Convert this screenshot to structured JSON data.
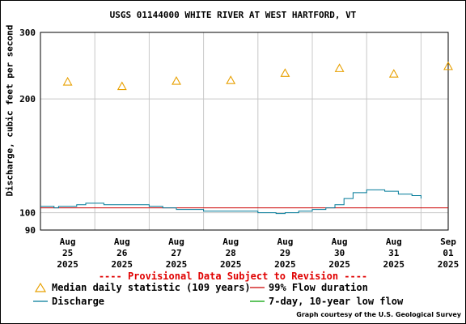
{
  "chart_data": {
    "type": "line",
    "title": "USGS 01144000 WHITE RIVER AT WEST HARTFORD, VT",
    "ylabel": "Discharge, cubic feet per second",
    "yscale": "log",
    "ylim": [
      90,
      300
    ],
    "y_ticks": [
      90,
      100,
      200,
      300
    ],
    "x_range": [
      "2025-08-25 00:00",
      "2025-09-01 12:00"
    ],
    "x_ticks": [
      {
        "month": "Aug",
        "day": "25",
        "year": "2025",
        "date": "2025-08-25"
      },
      {
        "month": "Aug",
        "day": "26",
        "year": "2025",
        "date": "2025-08-26"
      },
      {
        "month": "Aug",
        "day": "27",
        "year": "2025",
        "date": "2025-08-27"
      },
      {
        "month": "Aug",
        "day": "28",
        "year": "2025",
        "date": "2025-08-28"
      },
      {
        "month": "Aug",
        "day": "29",
        "year": "2025",
        "date": "2025-08-29"
      },
      {
        "month": "Aug",
        "day": "30",
        "year": "2025",
        "date": "2025-08-30"
      },
      {
        "month": "Aug",
        "day": "31",
        "year": "2025",
        "date": "2025-08-31"
      },
      {
        "month": "Sep",
        "day": "01",
        "year": "2025",
        "date": "2025-09-01"
      }
    ],
    "grid": true,
    "series": [
      {
        "name": "Median daily statistic (109 years)",
        "type": "scatter",
        "color": "#e8a000",
        "marker": "triangle",
        "points": [
          {
            "x": "2025-08-25 12:00",
            "y": 222
          },
          {
            "x": "2025-08-26 12:00",
            "y": 216
          },
          {
            "x": "2025-08-27 12:00",
            "y": 223
          },
          {
            "x": "2025-08-28 12:00",
            "y": 224
          },
          {
            "x": "2025-08-29 12:00",
            "y": 234
          },
          {
            "x": "2025-08-30 12:00",
            "y": 241
          },
          {
            "x": "2025-08-31 12:00",
            "y": 233
          },
          {
            "x": "2025-09-01 12:00",
            "y": 244
          }
        ]
      },
      {
        "name": "99% Flow duration",
        "type": "line",
        "color": "#cc0000",
        "points": [
          {
            "x": "2025-08-25 00:00",
            "y": 103
          },
          {
            "x": "2025-09-01 12:00",
            "y": 103
          }
        ]
      },
      {
        "name": "Discharge",
        "type": "line",
        "color": "#007a99",
        "points": [
          {
            "x": "2025-08-25 00:00",
            "y": 104
          },
          {
            "x": "2025-08-25 04:00",
            "y": 104
          },
          {
            "x": "2025-08-25 06:00",
            "y": 103
          },
          {
            "x": "2025-08-25 08:00",
            "y": 104
          },
          {
            "x": "2025-08-25 12:00",
            "y": 104
          },
          {
            "x": "2025-08-25 16:00",
            "y": 105
          },
          {
            "x": "2025-08-25 20:00",
            "y": 106
          },
          {
            "x": "2025-08-26 00:00",
            "y": 106
          },
          {
            "x": "2025-08-26 04:00",
            "y": 105
          },
          {
            "x": "2025-08-26 12:00",
            "y": 105
          },
          {
            "x": "2025-08-26 18:00",
            "y": 105
          },
          {
            "x": "2025-08-27 00:00",
            "y": 104
          },
          {
            "x": "2025-08-27 06:00",
            "y": 103
          },
          {
            "x": "2025-08-27 12:00",
            "y": 102
          },
          {
            "x": "2025-08-27 18:00",
            "y": 102
          },
          {
            "x": "2025-08-28 00:00",
            "y": 101
          },
          {
            "x": "2025-08-28 12:00",
            "y": 101
          },
          {
            "x": "2025-08-29 00:00",
            "y": 100
          },
          {
            "x": "2025-08-29 06:00",
            "y": 100
          },
          {
            "x": "2025-08-29 08:00",
            "y": 99.5
          },
          {
            "x": "2025-08-29 12:00",
            "y": 100
          },
          {
            "x": "2025-08-29 18:00",
            "y": 101
          },
          {
            "x": "2025-08-30 00:00",
            "y": 102
          },
          {
            "x": "2025-08-30 06:00",
            "y": 103
          },
          {
            "x": "2025-08-30 10:00",
            "y": 105
          },
          {
            "x": "2025-08-30 14:00",
            "y": 109
          },
          {
            "x": "2025-08-30 18:00",
            "y": 113
          },
          {
            "x": "2025-08-31 00:00",
            "y": 115
          },
          {
            "x": "2025-08-31 04:00",
            "y": 115
          },
          {
            "x": "2025-08-31 08:00",
            "y": 114
          },
          {
            "x": "2025-08-31 14:00",
            "y": 112
          },
          {
            "x": "2025-08-31 20:00",
            "y": 111
          },
          {
            "x": "2025-09-01 00:00",
            "y": 109
          }
        ]
      },
      {
        "name": "7-day, 10-year low flow",
        "type": "line",
        "color": "#00a000",
        "points": []
      }
    ],
    "annotations": [
      "---- Provisional Data Subject to Revision ----"
    ],
    "credit": "Graph courtesy of the U.S. Geological Survey"
  }
}
